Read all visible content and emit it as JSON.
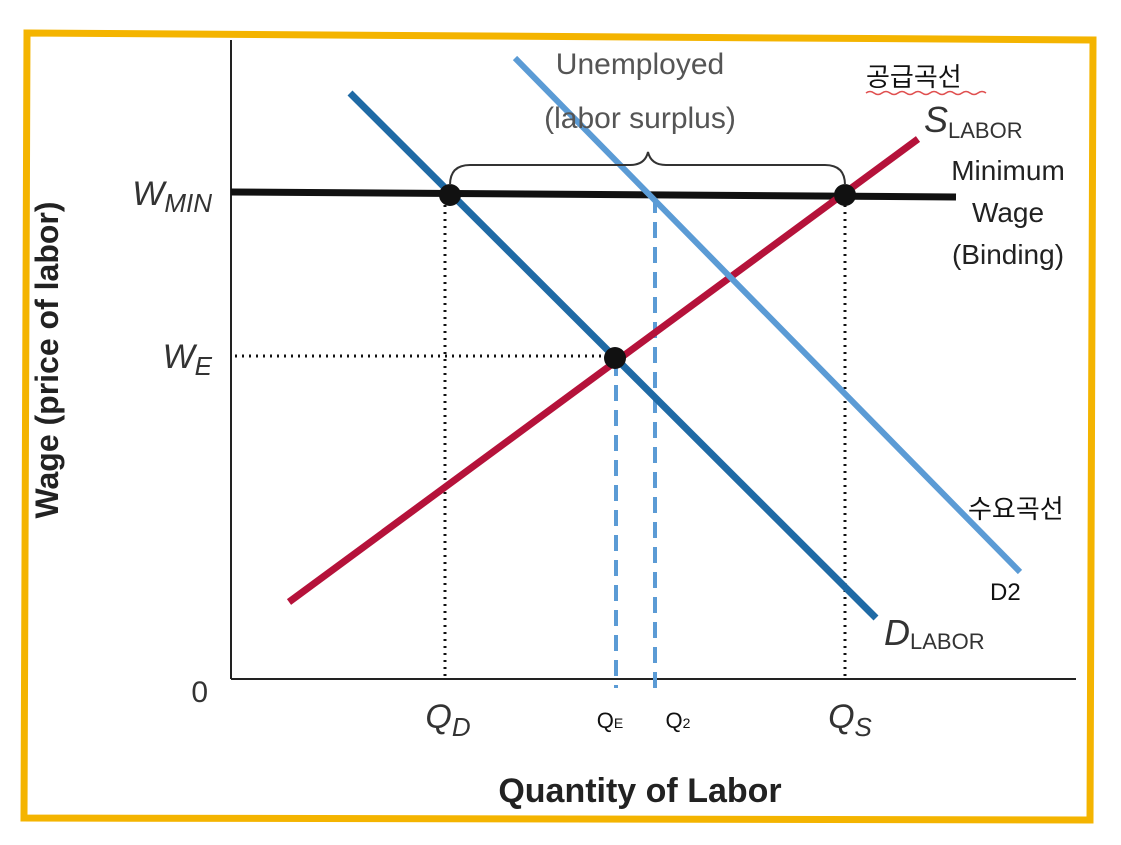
{
  "axes": {
    "y_label": "Wage (price of labor)",
    "x_label": "Quantity of Labor",
    "origin": "0"
  },
  "wage_levels": [
    {
      "symbol": "W",
      "subscript": "MIN"
    },
    {
      "symbol": "W",
      "subscript": "E"
    }
  ],
  "quantities": [
    {
      "symbol": "Q",
      "subscript": "D"
    },
    {
      "symbol": "Q",
      "subscript": "E"
    },
    {
      "symbol": "Q",
      "subscript": "2"
    },
    {
      "symbol": "Q",
      "subscript": "S"
    }
  ],
  "curves": {
    "supply": {
      "symbol": "S",
      "subscript": "LABOR",
      "note": "공급곡선"
    },
    "demand": {
      "symbol": "D",
      "subscript": "LABOR"
    },
    "demand2": {
      "label": "D2",
      "note": "수요곡선"
    }
  },
  "annotations": {
    "surplus": [
      "Unemployed",
      "(labor surplus)"
    ],
    "minimum_wage": [
      "Minimum",
      "Wage",
      "(Binding)"
    ]
  }
}
